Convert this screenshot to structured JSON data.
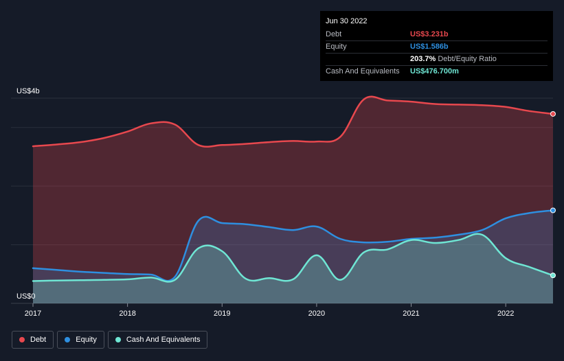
{
  "colors": {
    "debt": "#e8484e",
    "equity": "#2e8fe0",
    "cash": "#6fe6d4",
    "grid": "#2a303c",
    "axis": "#8a8f99"
  },
  "tooltip": {
    "date": "Jun 30 2022",
    "rows": [
      {
        "label": "Debt",
        "value": "US$3.231b",
        "color": "#e8484e",
        "sub": ""
      },
      {
        "label": "Equity",
        "value": "US$1.586b",
        "color": "#2e8fe0",
        "sub": ""
      },
      {
        "label": "",
        "value": "203.7%",
        "color": "#ffffff",
        "sub": "Debt/Equity Ratio"
      },
      {
        "label": "Cash And Equivalents",
        "value": "US$476.700m",
        "color": "#6fe6d4",
        "sub": ""
      }
    ]
  },
  "legend": [
    {
      "label": "Debt",
      "color": "#e8484e"
    },
    {
      "label": "Equity",
      "color": "#2e8fe0"
    },
    {
      "label": "Cash And Equivalents",
      "color": "#6fe6d4"
    }
  ],
  "chart_data": {
    "type": "area",
    "title": "",
    "xlabel": "",
    "ylabel": "",
    "y_top_label": "US$4b",
    "y_bottom_label": "US$0",
    "xlim": [
      2017.0,
      2022.5
    ],
    "ylim": [
      0,
      3.5
    ],
    "gridlines": [
      1,
      2,
      3,
      3.5
    ],
    "x_ticks": [
      {
        "value": 2017,
        "label": "2017"
      },
      {
        "value": 2018,
        "label": "2018"
      },
      {
        "value": 2019,
        "label": "2019"
      },
      {
        "value": 2020,
        "label": "2020"
      },
      {
        "value": 2021,
        "label": "2021"
      },
      {
        "value": 2022,
        "label": "2022"
      }
    ],
    "series": [
      {
        "name": "Debt",
        "key": "debt",
        "points": [
          [
            2017.0,
            2.68
          ],
          [
            2017.25,
            2.71
          ],
          [
            2017.5,
            2.75
          ],
          [
            2017.75,
            2.82
          ],
          [
            2018.0,
            2.93
          ],
          [
            2018.25,
            3.07
          ],
          [
            2018.5,
            3.05
          ],
          [
            2018.75,
            2.7
          ],
          [
            2019.0,
            2.7
          ],
          [
            2019.25,
            2.72
          ],
          [
            2019.5,
            2.75
          ],
          [
            2019.75,
            2.77
          ],
          [
            2020.0,
            2.76
          ],
          [
            2020.25,
            2.84
          ],
          [
            2020.5,
            3.48
          ],
          [
            2020.75,
            3.46
          ],
          [
            2021.0,
            3.44
          ],
          [
            2021.25,
            3.4
          ],
          [
            2021.5,
            3.39
          ],
          [
            2021.75,
            3.38
          ],
          [
            2022.0,
            3.35
          ],
          [
            2022.25,
            3.28
          ],
          [
            2022.5,
            3.231
          ]
        ]
      },
      {
        "name": "Equity",
        "key": "equity",
        "points": [
          [
            2017.0,
            0.6
          ],
          [
            2017.25,
            0.57
          ],
          [
            2017.5,
            0.54
          ],
          [
            2017.75,
            0.52
          ],
          [
            2018.0,
            0.5
          ],
          [
            2018.25,
            0.49
          ],
          [
            2018.5,
            0.45
          ],
          [
            2018.75,
            1.41
          ],
          [
            2019.0,
            1.37
          ],
          [
            2019.25,
            1.35
          ],
          [
            2019.5,
            1.3
          ],
          [
            2019.75,
            1.25
          ],
          [
            2020.0,
            1.31
          ],
          [
            2020.25,
            1.1
          ],
          [
            2020.5,
            1.04
          ],
          [
            2020.75,
            1.05
          ],
          [
            2021.0,
            1.1
          ],
          [
            2021.25,
            1.12
          ],
          [
            2021.5,
            1.17
          ],
          [
            2021.75,
            1.25
          ],
          [
            2022.0,
            1.45
          ],
          [
            2022.25,
            1.54
          ],
          [
            2022.5,
            1.586
          ]
        ]
      },
      {
        "name": "Cash And Equivalents",
        "key": "cash",
        "points": [
          [
            2017.0,
            0.38
          ],
          [
            2017.25,
            0.39
          ],
          [
            2017.5,
            0.395
          ],
          [
            2017.75,
            0.4
          ],
          [
            2018.0,
            0.41
          ],
          [
            2018.25,
            0.44
          ],
          [
            2018.5,
            0.4
          ],
          [
            2018.75,
            0.94
          ],
          [
            2019.0,
            0.89
          ],
          [
            2019.25,
            0.42
          ],
          [
            2019.5,
            0.43
          ],
          [
            2019.75,
            0.41
          ],
          [
            2020.0,
            0.82
          ],
          [
            2020.25,
            0.4
          ],
          [
            2020.5,
            0.87
          ],
          [
            2020.75,
            0.92
          ],
          [
            2021.0,
            1.08
          ],
          [
            2021.25,
            1.03
          ],
          [
            2021.5,
            1.08
          ],
          [
            2021.75,
            1.17
          ],
          [
            2022.0,
            0.77
          ],
          [
            2022.25,
            0.62
          ],
          [
            2022.5,
            0.4767
          ]
        ]
      }
    ]
  }
}
